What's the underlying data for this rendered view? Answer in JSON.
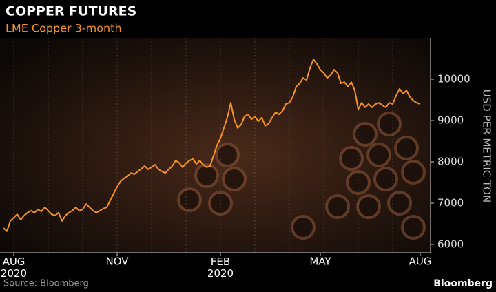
{
  "chart_data": {
    "type": "line",
    "title": "COPPER FUTURES",
    "subtitle": "LME Copper 3-month",
    "y_axis_label": "USD PER METRIC TON",
    "source": "Source: Bloomberg",
    "brand": "Bloomberg",
    "categories": [
      null,
      null,
      null,
      "AUG 2020",
      null,
      null,
      null,
      null,
      null,
      null,
      null,
      null,
      null,
      null,
      null,
      null,
      null,
      null,
      null,
      null,
      null,
      null,
      null,
      null,
      null,
      null,
      null,
      null,
      null,
      null,
      null,
      null,
      null,
      "NOV",
      null,
      null,
      null,
      null,
      null,
      null,
      null,
      null,
      null,
      null,
      null,
      null,
      null,
      null,
      null,
      null,
      null,
      null,
      null,
      null,
      null,
      null,
      null,
      null,
      null,
      null,
      null,
      null,
      null,
      "FEB 2020",
      null,
      null,
      null,
      null,
      null,
      null,
      null,
      null,
      null,
      null,
      null,
      null,
      null,
      null,
      null,
      null,
      null,
      null,
      null,
      null,
      null,
      null,
      null,
      null,
      null,
      null,
      null,
      null,
      "MAY",
      null,
      null,
      null,
      null,
      null,
      null,
      null,
      null,
      null,
      null,
      null,
      null,
      null,
      null,
      null,
      null,
      null,
      null,
      null,
      null,
      null,
      null,
      null,
      null,
      null,
      null,
      null,
      null,
      "AUG"
    ],
    "series": [
      {
        "name": "LME Copper 3-month",
        "color": "#f7941d",
        "values": [
          6400,
          6320,
          6570,
          6650,
          6730,
          6600,
          6700,
          6770,
          6820,
          6770,
          6850,
          6800,
          6900,
          6820,
          6730,
          6700,
          6770,
          6570,
          6700,
          6770,
          6820,
          6900,
          6820,
          6850,
          6980,
          6900,
          6820,
          6770,
          6820,
          6870,
          6900,
          7070,
          7230,
          7400,
          7530,
          7600,
          7650,
          7730,
          7700,
          7770,
          7830,
          7900,
          7820,
          7870,
          7930,
          7820,
          7770,
          7730,
          7820,
          7900,
          8030,
          7980,
          7870,
          7970,
          8030,
          8070,
          7950,
          8030,
          7930,
          7870,
          7900,
          8150,
          8400,
          8570,
          8820,
          9070,
          9430,
          9030,
          8820,
          8900,
          9100,
          9150,
          9030,
          9100,
          8980,
          9070,
          8870,
          8930,
          9070,
          9200,
          9150,
          9230,
          9400,
          9430,
          9570,
          9820,
          9900,
          10030,
          9980,
          10270,
          10480,
          10370,
          10230,
          10150,
          10030,
          10100,
          10230,
          10150,
          9900,
          9930,
          9820,
          9930,
          9730,
          9270,
          9430,
          9320,
          9400,
          9320,
          9400,
          9430,
          9370,
          9320,
          9430,
          9400,
          9600,
          9770,
          9650,
          9730,
          9570,
          9480,
          9430,
          9400
        ]
      }
    ],
    "ylim": [
      5800,
      11000
    ],
    "yticks": [
      6000,
      7000,
      8000,
      9000,
      10000
    ],
    "y_axis_side": "right"
  }
}
